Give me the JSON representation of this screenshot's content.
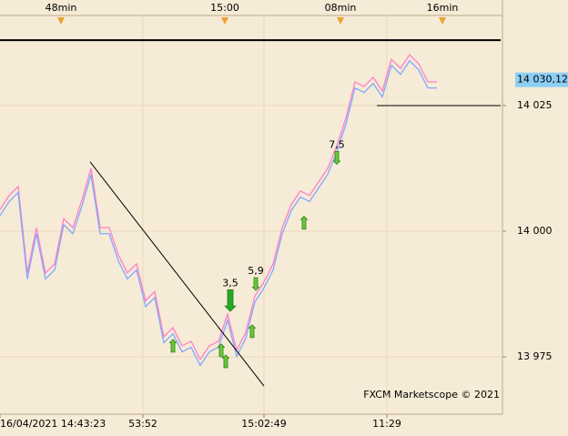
{
  "chart_data": {
    "type": "line",
    "x": [
      0,
      1,
      2,
      3,
      4,
      5,
      6,
      7,
      8,
      9,
      10,
      11,
      12,
      13,
      14,
      15,
      16,
      17,
      18,
      19,
      20,
      21,
      22,
      23,
      24,
      25,
      26,
      27,
      28,
      29,
      30,
      31,
      32,
      33,
      34,
      35,
      36,
      37,
      38,
      39,
      40,
      41,
      42,
      43,
      44,
      45,
      46,
      47,
      48
    ],
    "series": [
      {
        "color": "#ff7fc8",
        "values": [
          14004.3,
          14007.1,
          14008.9,
          13991.7,
          14000.7,
          13991.7,
          13993.5,
          14002.5,
          14000.7,
          14006.2,
          14012.5,
          14000.7,
          14000.7,
          13995.3,
          13991.7,
          13993.5,
          13986.2,
          13988.0,
          13979.0,
          13980.8,
          13977.2,
          13978.1,
          13974.5,
          13977.2,
          13978.1,
          13983.5,
          13976.3,
          13979.9,
          13987.1,
          13989.9,
          13993.5,
          14000.7,
          14005.3,
          14008.0,
          14007.1,
          14009.8,
          14012.5,
          14017.0,
          14022.5,
          14029.7,
          14028.8,
          14030.6,
          14027.9,
          14034.2,
          14032.4,
          14035.1,
          14033.3,
          14029.7,
          14029.7
        ]
      },
      {
        "color": "#7fa8ff",
        "values": [
          14003.1,
          14005.9,
          14007.7,
          13990.5,
          13999.5,
          13990.5,
          13992.3,
          14001.3,
          13999.5,
          14005.0,
          14011.3,
          13999.5,
          13999.5,
          13994.1,
          13990.5,
          13992.3,
          13985.0,
          13986.8,
          13977.8,
          13979.6,
          13976.0,
          13976.9,
          13973.3,
          13976.0,
          13976.9,
          13982.3,
          13975.1,
          13978.7,
          13985.9,
          13988.7,
          13992.3,
          13999.5,
          14004.1,
          14006.8,
          14005.9,
          14008.6,
          14011.3,
          14015.8,
          14021.3,
          14028.5,
          14027.6,
          14029.4,
          14026.7,
          14033.0,
          14031.2,
          14033.9,
          14032.1,
          14028.5,
          14028.5
        ]
      }
    ],
    "xlim": [
      0,
      55.2
    ],
    "ylim": [
      13963.6,
      14046.0
    ],
    "yticks": [
      {
        "value": 13975,
        "label": "13 975"
      },
      {
        "value": 14000,
        "label": "14 000"
      },
      {
        "value": 14025,
        "label": "14 025"
      }
    ],
    "xticks": [
      {
        "value": 0,
        "label": "16/04/2021 14:43:23"
      },
      {
        "value": 15.7,
        "label": "53:52"
      },
      {
        "value": 29.0,
        "label": "15:02:49"
      },
      {
        "value": 42.5,
        "label": "11:29"
      }
    ],
    "top_ticks": [
      {
        "value": 6.7,
        "label": "48min"
      },
      {
        "value": 24.7,
        "label": "15:00"
      },
      {
        "value": 37.4,
        "label": "08min"
      },
      {
        "value": 48.6,
        "label": "16min"
      }
    ],
    "last_price": {
      "value": 14030.12,
      "label": "14 030,12"
    },
    "levels": [
      {
        "value": 14038.0,
        "x0": 0
      },
      {
        "value": 14025,
        "x0": 41.4
      }
    ],
    "trendline": {
      "x": [
        9.9,
        29.0
      ],
      "y": [
        14013.8,
        13969.2
      ]
    },
    "signals": [
      {
        "x": 19.0,
        "y": 13977.2,
        "direction": "up"
      },
      {
        "x": 24.3,
        "y": 13976.3,
        "direction": "up"
      },
      {
        "x": 24.8,
        "y": 13974.1,
        "direction": "up"
      },
      {
        "x": 27.7,
        "y": 13980.1,
        "direction": "up"
      },
      {
        "x": 33.4,
        "y": 14001.7,
        "direction": "up"
      },
      {
        "x": 25.3,
        "y": 13986.2,
        "direction": "down",
        "label": "3,5",
        "big": true
      },
      {
        "x": 28.1,
        "y": 13989.5,
        "direction": "down",
        "label": "5,9"
      },
      {
        "x": 37.0,
        "y": 14014.6,
        "direction": "down",
        "label": "7,5"
      }
    ],
    "watermark": "FXCM Marketscope © 2021",
    "grid": true
  }
}
